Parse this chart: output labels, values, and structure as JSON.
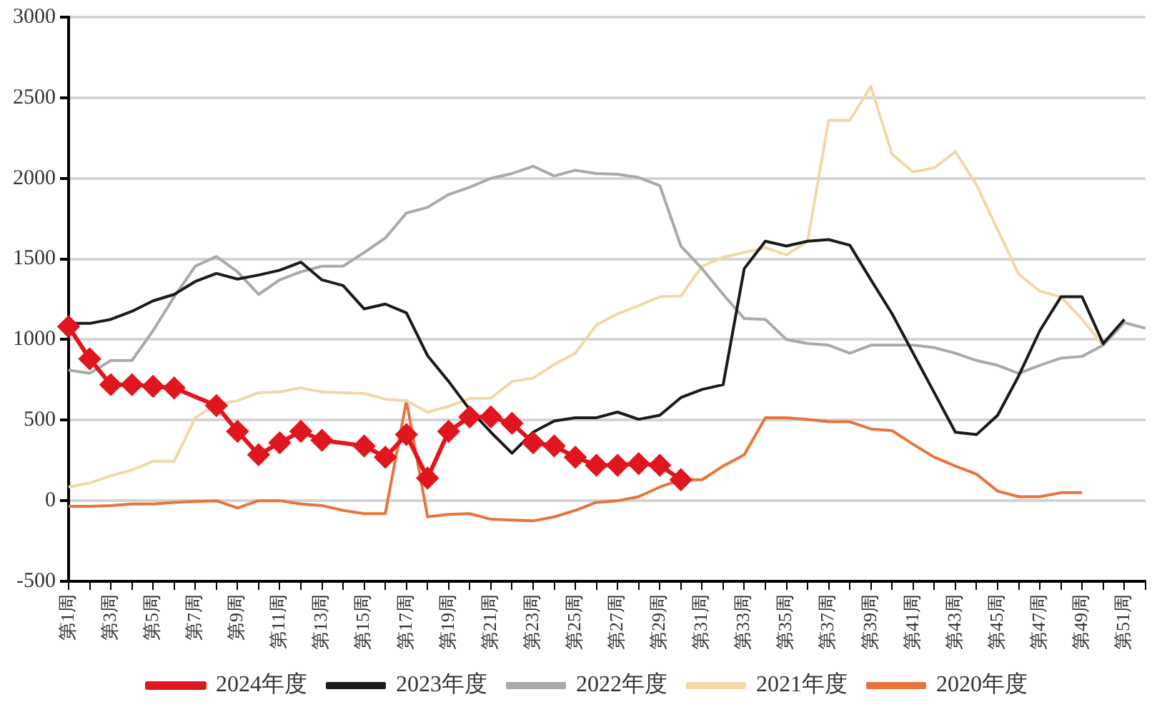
{
  "chart_data": {
    "type": "line",
    "categories": [
      "第1周",
      null,
      "第3周",
      null,
      "第5周",
      null,
      "第7周",
      null,
      "第9周",
      null,
      "第11周",
      null,
      "第13周",
      null,
      "第15周",
      null,
      "第17周",
      null,
      "第19周",
      null,
      "第21周",
      null,
      "第23周",
      null,
      "第25周",
      null,
      "第27周",
      null,
      "第29周",
      null,
      "第31周",
      null,
      "第33周",
      null,
      "第35周",
      null,
      "第37周",
      null,
      "第39周",
      null,
      "第41周",
      null,
      "第43周",
      null,
      "第45周",
      null,
      "第47周",
      null,
      "第49周",
      null,
      "第51周",
      null
    ],
    "series": [
      {
        "name": "2024年度",
        "color": "#e0161f",
        "marker": "diamond",
        "values": [
          1080,
          880,
          720,
          720,
          710,
          700,
          null,
          590,
          430,
          285,
          360,
          430,
          375,
          null,
          340,
          270,
          410,
          140,
          430,
          520,
          520,
          480,
          360,
          340,
          270,
          220,
          220,
          230,
          220,
          130,
          null,
          null,
          null,
          null,
          null,
          null,
          null,
          null,
          null,
          null,
          null,
          null,
          null,
          null,
          null,
          null,
          null,
          null,
          null,
          null,
          null,
          null
        ]
      },
      {
        "name": "2023年度",
        "color": "#1a1a1a",
        "values": [
          1100,
          1100,
          1125,
          1175,
          1240,
          1280,
          1360,
          1410,
          1375,
          1400,
          1430,
          1480,
          1370,
          1335,
          1190,
          1220,
          1165,
          900,
          740,
          565,
          425,
          295,
          425,
          495,
          515,
          515,
          550,
          505,
          530,
          640,
          690,
          720,
          1440,
          1610,
          1580,
          1610,
          1620,
          1585,
          1370,
          1160,
          915,
          670,
          425,
          410,
          530,
          775,
          1055,
          1265,
          1265,
          975,
          1125,
          null
        ]
      },
      {
        "name": "2022年度",
        "color": "#aaaaaa",
        "values": [
          810,
          790,
          870,
          870,
          1055,
          1265,
          1455,
          1515,
          1420,
          1280,
          1370,
          1420,
          1455,
          1455,
          1540,
          1630,
          1785,
          1820,
          1900,
          1945,
          2000,
          2030,
          2075,
          2015,
          2050,
          2030,
          2025,
          2005,
          1955,
          1580,
          1440,
          1280,
          1130,
          1125,
          1000,
          975,
          965,
          915,
          965,
          965,
          965,
          950,
          915,
          870,
          840,
          790,
          840,
          885,
          895,
          965,
          1105,
          1070
        ]
      },
      {
        "name": "2021年度",
        "color": "#f0d9a8",
        "values": [
          85,
          110,
          155,
          190,
          245,
          245,
          515,
          600,
          620,
          670,
          675,
          700,
          675,
          670,
          665,
          630,
          620,
          550,
          585,
          635,
          635,
          740,
          760,
          845,
          915,
          1090,
          1160,
          1210,
          1265,
          1270,
          1455,
          1510,
          1540,
          1570,
          1525,
          1610,
          2360,
          2360,
          2570,
          2150,
          2040,
          2065,
          2165,
          1960,
          1680,
          1405,
          1300,
          1265,
          1125,
          965,
          null,
          null
        ]
      },
      {
        "name": "2020年度",
        "color": "#e8743b",
        "values": [
          -35,
          -35,
          -30,
          -20,
          -20,
          -10,
          -5,
          0,
          -45,
          0,
          0,
          -20,
          -30,
          -60,
          -80,
          -80,
          620,
          -100,
          -85,
          -80,
          -115,
          -120,
          -125,
          -100,
          -60,
          -10,
          0,
          25,
          85,
          130,
          130,
          215,
          285,
          515,
          515,
          505,
          490,
          490,
          445,
          435,
          350,
          270,
          215,
          165,
          60,
          25,
          25,
          50,
          50,
          null,
          null,
          null
        ]
      }
    ],
    "ylim": [
      -500,
      3000
    ],
    "yticks": [
      -500,
      0,
      500,
      1000,
      1500,
      2000,
      2500,
      3000
    ],
    "grid": "y",
    "legend": "bottom",
    "marker": "none",
    "line_style": "solid"
  }
}
